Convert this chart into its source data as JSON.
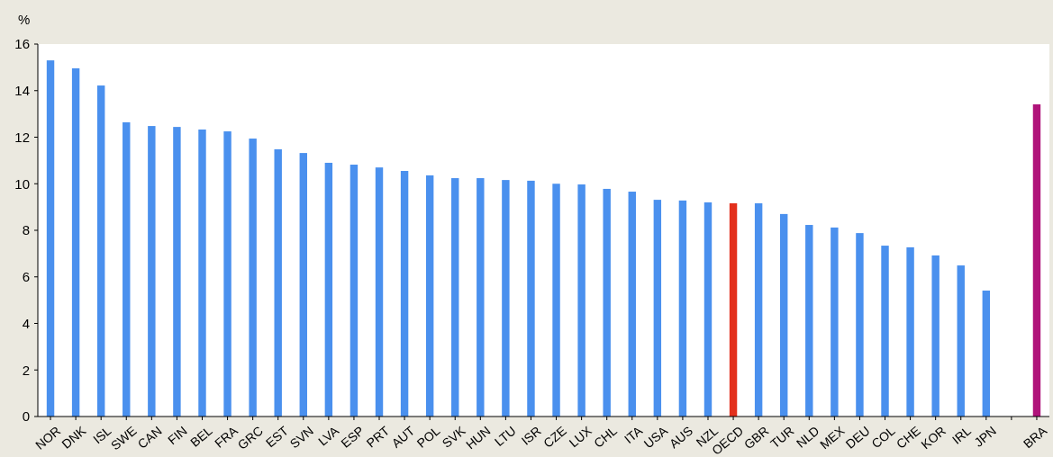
{
  "chart_data": {
    "type": "bar",
    "ylabel": "%",
    "categories": [
      "NOR",
      "DNK",
      "ISL",
      "SWE",
      "CAN",
      "FIN",
      "BEL",
      "FRA",
      "GRC",
      "EST",
      "SVN",
      "LVA",
      "ESP",
      "PRT",
      "AUT",
      "POL",
      "SVK",
      "HUN",
      "LTU",
      "ISR",
      "CZE",
      "LUX",
      "CHL",
      "ITA",
      "USA",
      "AUS",
      "NZL",
      "OECD",
      "GBR",
      "TUR",
      "NLD",
      "MEX",
      "DEU",
      "COL",
      "CHE",
      "KOR",
      "IRL",
      "JPN",
      null,
      "BRA"
    ],
    "values": [
      15.3,
      14.96,
      14.22,
      12.64,
      12.48,
      12.44,
      12.33,
      12.25,
      11.94,
      11.48,
      11.32,
      10.9,
      10.82,
      10.7,
      10.55,
      10.36,
      10.24,
      10.24,
      10.16,
      10.13,
      10.0,
      9.97,
      9.78,
      9.66,
      9.31,
      9.28,
      9.2,
      9.16,
      9.16,
      8.7,
      8.23,
      8.12,
      7.88,
      7.34,
      7.27,
      6.92,
      6.49,
      5.41,
      null,
      13.41
    ],
    "colors": [
      "#4a90ee",
      "#4a90ee",
      "#4a90ee",
      "#4a90ee",
      "#4a90ee",
      "#4a90ee",
      "#4a90ee",
      "#4a90ee",
      "#4a90ee",
      "#4a90ee",
      "#4a90ee",
      "#4a90ee",
      "#4a90ee",
      "#4a90ee",
      "#4a90ee",
      "#4a90ee",
      "#4a90ee",
      "#4a90ee",
      "#4a90ee",
      "#4a90ee",
      "#4a90ee",
      "#4a90ee",
      "#4a90ee",
      "#4a90ee",
      "#4a90ee",
      "#4a90ee",
      "#4a90ee",
      "#e3301c",
      "#4a90ee",
      "#4a90ee",
      "#4a90ee",
      "#4a90ee",
      "#4a90ee",
      "#4a90ee",
      "#4a90ee",
      "#4a90ee",
      "#4a90ee",
      "#4a90ee",
      null,
      "#b0137a"
    ],
    "ylim": [
      0,
      16
    ],
    "yticks": [
      0,
      2,
      4,
      6,
      8,
      10,
      12,
      14,
      16
    ],
    "grid": false
  }
}
